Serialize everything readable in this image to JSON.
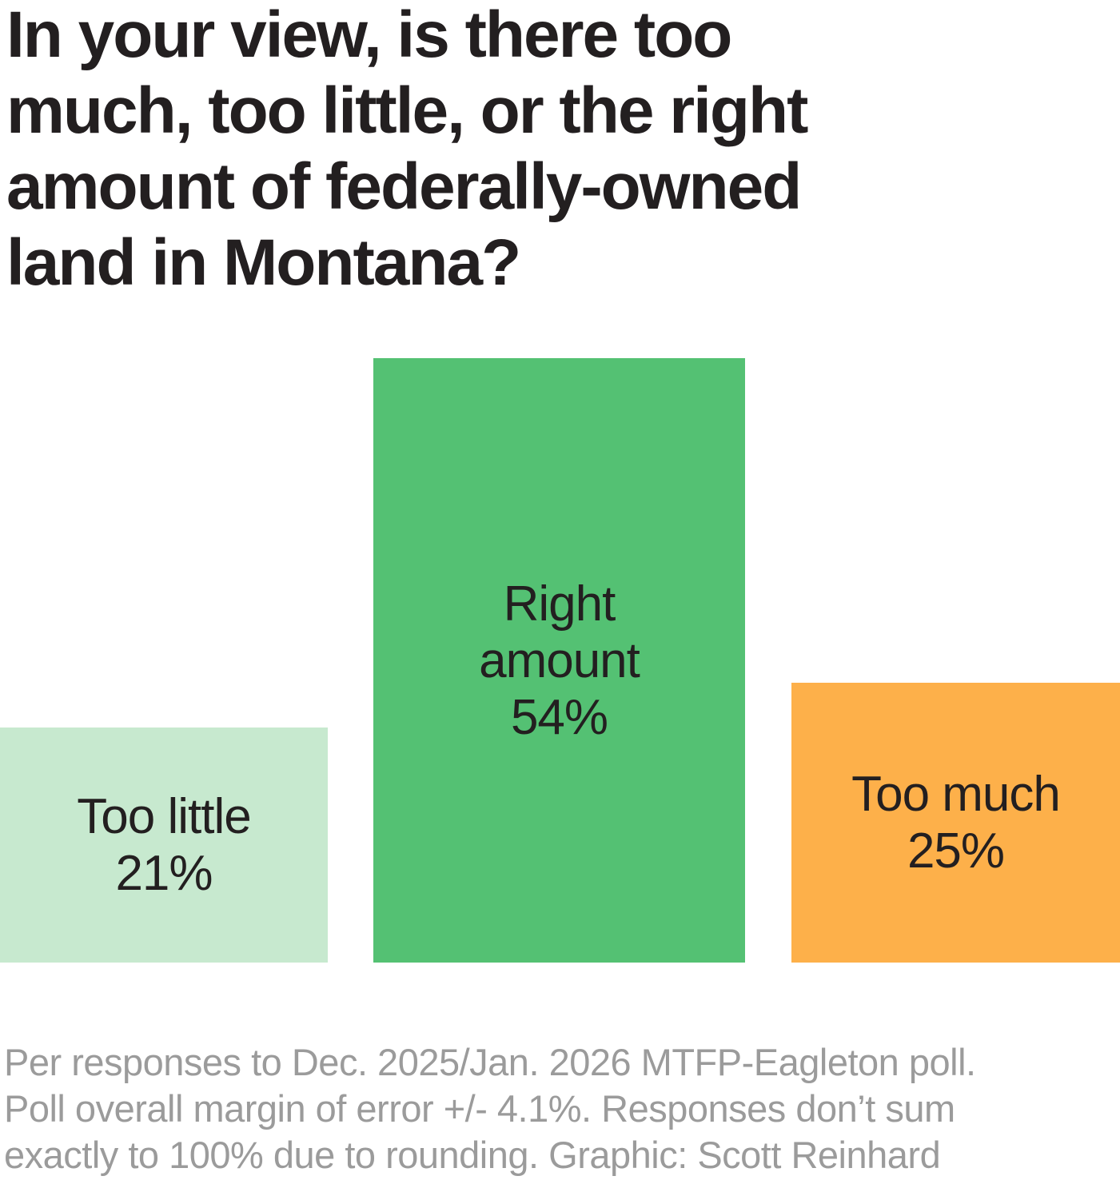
{
  "title": {
    "lines": [
      "In your view, is there too",
      "much, too little, or the right",
      "amount of federally-owned",
      "land in Montana?"
    ],
    "color": "#231f20"
  },
  "chart_data": {
    "type": "bar",
    "title": "In your view, is there too much, too little, or the right amount of federally-owned land in Montana?",
    "categories": [
      "Too little",
      "Right amount",
      "Too much"
    ],
    "values": [
      21,
      54,
      25
    ],
    "unit": "%",
    "value_labels": [
      "21%",
      "54%",
      "25%"
    ],
    "ylim": [
      0,
      54
    ],
    "grid": false,
    "legend": false,
    "axes_shown": false,
    "orientation": "vertical",
    "label_position": "inside-bar",
    "label_color": "#231f20",
    "bars": [
      {
        "category": "Too little",
        "value": 21,
        "color": "#c7e9cf",
        "label_lines": [
          "Too little",
          "21%"
        ]
      },
      {
        "category": "Right amount",
        "value": 54,
        "color": "#54c173",
        "label_lines": [
          "Right",
          "amount",
          "54%"
        ]
      },
      {
        "category": "Too much",
        "value": 25,
        "color": "#fdb04a",
        "label_lines": [
          "Too much",
          "25%"
        ]
      }
    ]
  },
  "footer": {
    "lines": [
      "Per responses to Dec. 2025/Jan. 2026 MTFP-Eagleton poll.",
      "Poll overall margin of error +/- 4.1%. Responses don’t sum",
      "exactly to 100% due to rounding. Graphic: Scott Reinhard"
    ],
    "color": "#9b9b9b"
  },
  "colors": {
    "background": "#ffffff",
    "title_text": "#231f20",
    "footer_text": "#9b9b9b",
    "bar_too_little": "#c7e9cf",
    "bar_right_amount": "#54c173",
    "bar_too_much": "#fdb04a"
  }
}
